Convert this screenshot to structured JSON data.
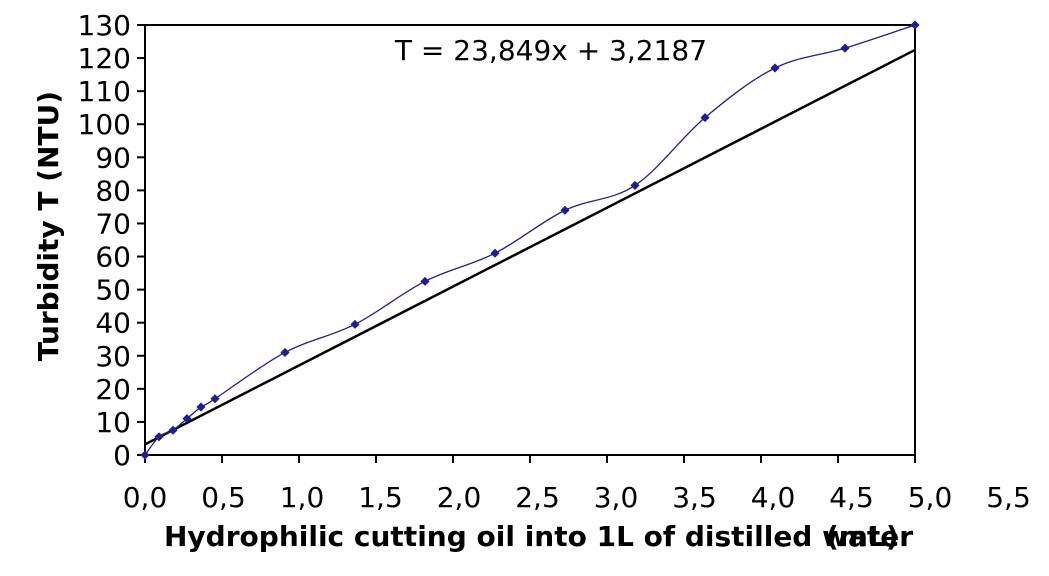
{
  "chart_data": {
    "type": "scatter",
    "xlabel": "Hydrophilic cutting oil into 1L of distilled water",
    "xunit": "(mL)",
    "ylabel": "Turbidity T (NTU)",
    "xlim": [
      0,
      5.5
    ],
    "ylim": [
      0,
      130
    ],
    "x_ticks": [
      "0,0",
      "0,5",
      "1,0",
      "1,5",
      "2,0",
      "2,5",
      "3,0",
      "3,5",
      "4,0",
      "4,5",
      "5,0",
      "5,5"
    ],
    "y_ticks": [
      "0",
      "10",
      "20",
      "30",
      "40",
      "50",
      "60",
      "70",
      "80",
      "90",
      "100",
      "110",
      "120",
      "130"
    ],
    "series": [
      {
        "x": [
          0.0,
          0.1,
          0.2,
          0.3,
          0.4,
          0.5,
          1.0,
          1.5,
          2.0,
          2.5,
          3.0,
          3.5,
          4.0,
          4.5,
          5.0,
          5.5
        ],
        "y": [
          0,
          5.5,
          7.5,
          11,
          14.5,
          17,
          31,
          39.5,
          52.5,
          61,
          74,
          81.5,
          102,
          117,
          123,
          130
        ],
        "color": "#1f1f8f",
        "marker": "diamond"
      }
    ],
    "trendline": {
      "equation": "T = 23,849x + 3,2187",
      "slope": 23.849,
      "intercept": 3.2187,
      "color": "#000000"
    },
    "plot_border": true,
    "grid": false
  }
}
